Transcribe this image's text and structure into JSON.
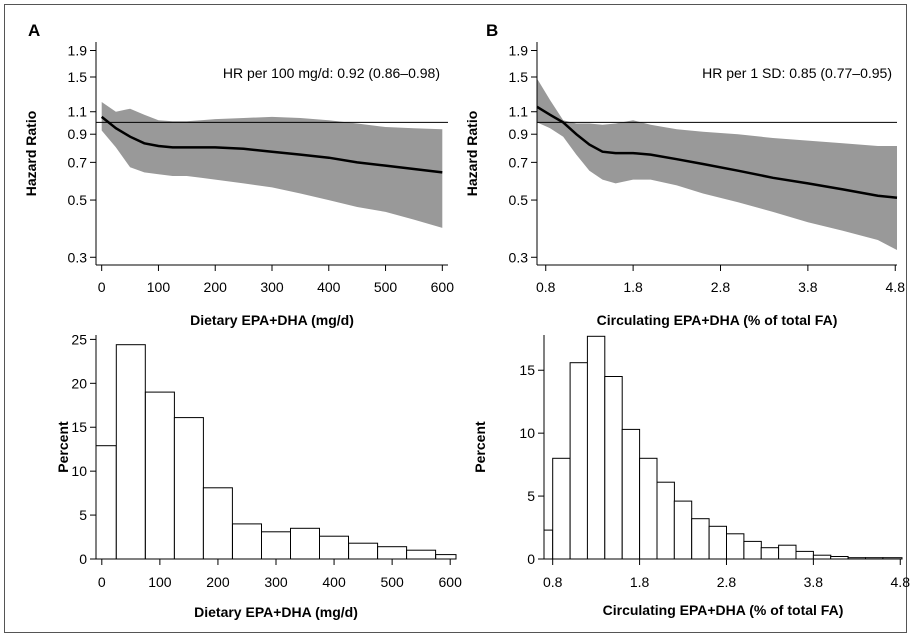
{
  "chart_data": [
    {
      "id": "A-top",
      "type": "line",
      "panel_label": "A",
      "xlabel": "Dietary EPA+DHA (mg/d)",
      "ylabel": "Hazard Ratio",
      "annotation": "HR per 100 mg/d: 0.92 (0.86–0.98)",
      "xlim": [
        -10,
        610
      ],
      "ylim": [
        0.28,
        2.05
      ],
      "yscale": "log",
      "xticks": [
        0,
        100,
        200,
        300,
        400,
        500,
        600
      ],
      "xtick_labels": [
        "0",
        "100",
        "200",
        "300",
        "400",
        "500",
        "600"
      ],
      "yticks": [
        0.3,
        0.5,
        0.7,
        0.9,
        1.1,
        1.5,
        1.9
      ],
      "ytick_labels": [
        "0.3",
        "0.5",
        "0.7",
        "0.9",
        "1.1",
        "1.5",
        "1.9"
      ],
      "reference_line": 1.0,
      "series": [
        {
          "x": [
            0,
            25,
            50,
            75,
            100,
            125,
            150,
            175,
            200,
            250,
            300,
            350,
            400,
            450,
            500,
            550,
            600
          ],
          "y": [
            1.05,
            0.95,
            0.88,
            0.83,
            0.81,
            0.8,
            0.8,
            0.8,
            0.8,
            0.79,
            0.77,
            0.75,
            0.73,
            0.7,
            0.68,
            0.66,
            0.64
          ],
          "lower": [
            0.93,
            0.8,
            0.67,
            0.64,
            0.63,
            0.62,
            0.62,
            0.61,
            0.6,
            0.58,
            0.56,
            0.53,
            0.5,
            0.47,
            0.45,
            0.42,
            0.39
          ],
          "upper": [
            1.2,
            1.1,
            1.13,
            1.07,
            1.02,
            1.01,
            1.01,
            1.02,
            1.03,
            1.04,
            1.05,
            1.04,
            1.02,
            0.99,
            0.96,
            0.95,
            0.94
          ]
        }
      ]
    },
    {
      "id": "B-top",
      "type": "line",
      "panel_label": "B",
      "xlabel": "Circulating EPA+DHA (% of total FA)",
      "ylabel": "Hazard Ratio",
      "annotation": "HR per 1 SD: 0.85 (0.77–0.95)",
      "xlim": [
        0.7,
        4.82
      ],
      "ylim": [
        0.28,
        2.05
      ],
      "yscale": "log",
      "xticks": [
        0.8,
        1.8,
        2.8,
        3.8,
        4.8
      ],
      "xtick_labels": [
        "0.8",
        "1.8",
        "2.8",
        "3.8",
        "4.8"
      ],
      "yticks": [
        0.3,
        0.5,
        0.7,
        0.9,
        1.1,
        1.5,
        1.9
      ],
      "ytick_labels": [
        "0.3",
        "0.5",
        "0.7",
        "0.9",
        "1.1",
        "1.5",
        "1.9"
      ],
      "reference_line": 1.0,
      "series": [
        {
          "x": [
            0.7,
            0.85,
            1.0,
            1.15,
            1.3,
            1.45,
            1.6,
            1.8,
            2.0,
            2.3,
            2.6,
            3.0,
            3.4,
            3.8,
            4.2,
            4.6,
            4.82
          ],
          "y": [
            1.15,
            1.07,
            1.0,
            0.9,
            0.82,
            0.77,
            0.76,
            0.76,
            0.75,
            0.72,
            0.69,
            0.65,
            0.61,
            0.58,
            0.55,
            0.52,
            0.51
          ],
          "lower": [
            1.0,
            0.95,
            0.88,
            0.75,
            0.65,
            0.6,
            0.58,
            0.6,
            0.6,
            0.57,
            0.53,
            0.49,
            0.45,
            0.41,
            0.38,
            0.35,
            0.32
          ],
          "upper": [
            1.48,
            1.22,
            1.02,
            0.99,
            0.99,
            0.98,
            0.99,
            1.02,
            0.98,
            0.94,
            0.92,
            0.9,
            0.87,
            0.85,
            0.83,
            0.81,
            0.81
          ]
        }
      ]
    },
    {
      "id": "A-bottom",
      "type": "bar",
      "xlabel": "Dietary EPA+DHA (mg/d)",
      "ylabel": "Percent",
      "xlim": [
        -10,
        610
      ],
      "ylim": [
        0,
        25.5
      ],
      "xticks": [
        0,
        100,
        200,
        300,
        400,
        500,
        600
      ],
      "xtick_labels": [
        "0",
        "100",
        "200",
        "300",
        "400",
        "500",
        "600"
      ],
      "yticks": [
        0,
        5,
        10,
        15,
        20,
        25
      ],
      "ytick_labels": [
        "0",
        "5",
        "10",
        "15",
        "20",
        "25"
      ],
      "bin_edges": [
        -10,
        25,
        75,
        125,
        175,
        225,
        275,
        325,
        375,
        425,
        475,
        525,
        575,
        610
      ],
      "values": [
        12.9,
        24.4,
        19.0,
        16.1,
        8.1,
        4.0,
        3.1,
        3.5,
        2.6,
        1.8,
        1.4,
        1.0,
        0.5
      ]
    },
    {
      "id": "B-bottom",
      "type": "bar",
      "xlabel": "Circulating EPA+DHA (% of total FA)",
      "ylabel": "Percent",
      "xlim": [
        0.7,
        4.82
      ],
      "ylim": [
        0,
        17.8
      ],
      "xticks": [
        0.8,
        1.8,
        2.8,
        3.8,
        4.8
      ],
      "xtick_labels": [
        "0.8",
        "1.8",
        "2.8",
        "3.8",
        "4.8"
      ],
      "yticks": [
        0,
        5,
        10,
        15
      ],
      "ytick_labels": [
        "0",
        "5",
        "10",
        "15"
      ],
      "bin_edges": [
        0.7,
        0.8,
        1.0,
        1.2,
        1.4,
        1.6,
        1.8,
        2.0,
        2.2,
        2.4,
        2.6,
        2.8,
        3.0,
        3.2,
        3.4,
        3.6,
        3.8,
        4.0,
        4.2,
        4.4,
        4.6,
        4.82
      ],
      "values": [
        2.3,
        8.0,
        15.6,
        17.7,
        14.5,
        10.3,
        8.0,
        6.1,
        4.6,
        3.2,
        2.6,
        2.0,
        1.4,
        0.9,
        1.1,
        0.6,
        0.3,
        0.2,
        0.1,
        0.1,
        0.1
      ]
    }
  ],
  "colors": {
    "ci_band": "#999999",
    "line": "#000000",
    "reference": "#000000",
    "bar_fill": "#ffffff",
    "bar_stroke": "#000000"
  }
}
